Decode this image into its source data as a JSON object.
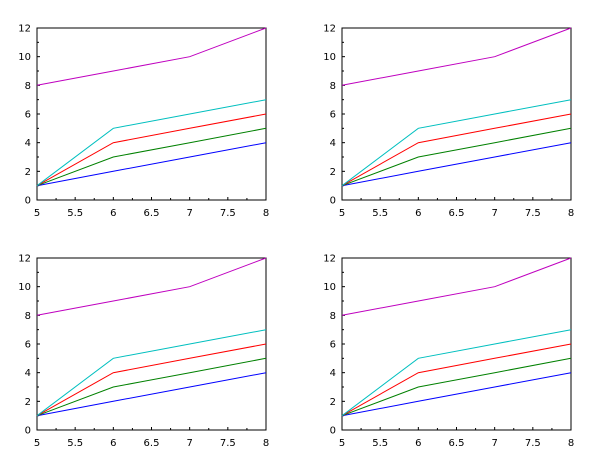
{
  "chart_data": [
    {
      "type": "line",
      "title": "",
      "xlabel": "",
      "ylabel": "",
      "xlim": [
        5,
        8
      ],
      "ylim": [
        0,
        12
      ],
      "x_ticks": [
        "5",
        "5.5",
        "6",
        "6.5",
        "7",
        "7.5",
        "8"
      ],
      "y_ticks": [
        "0",
        "2",
        "4",
        "6",
        "8",
        "10",
        "12"
      ],
      "grid": false,
      "x": [
        5,
        6,
        7,
        8
      ],
      "series": [
        {
          "name": "blue",
          "color": "#0000ff",
          "values": [
            1,
            2,
            3,
            4
          ]
        },
        {
          "name": "green",
          "color": "#008000",
          "values": [
            1,
            3,
            4,
            5
          ]
        },
        {
          "name": "red",
          "color": "#ff0000",
          "values": [
            1,
            4,
            5,
            6
          ]
        },
        {
          "name": "cyan",
          "color": "#00bfbf",
          "values": [
            1,
            5,
            6,
            7
          ]
        },
        {
          "name": "magenta",
          "color": "#bf00bf",
          "values": [
            8,
            9,
            10,
            12
          ]
        }
      ]
    },
    {
      "type": "line",
      "title": "",
      "xlabel": "",
      "ylabel": "",
      "xlim": [
        5,
        8
      ],
      "ylim": [
        0,
        12
      ],
      "x_ticks": [
        "5",
        "5.5",
        "6",
        "6.5",
        "7",
        "7.5",
        "8"
      ],
      "y_ticks": [
        "0",
        "2",
        "4",
        "6",
        "8",
        "10",
        "12"
      ],
      "grid": false,
      "x": [
        5,
        6,
        7,
        8
      ],
      "series": [
        {
          "name": "blue",
          "color": "#0000ff",
          "values": [
            1,
            2,
            3,
            4
          ]
        },
        {
          "name": "green",
          "color": "#008000",
          "values": [
            1,
            3,
            4,
            5
          ]
        },
        {
          "name": "red",
          "color": "#ff0000",
          "values": [
            1,
            4,
            5,
            6
          ]
        },
        {
          "name": "cyan",
          "color": "#00bfbf",
          "values": [
            1,
            5,
            6,
            7
          ]
        },
        {
          "name": "magenta",
          "color": "#bf00bf",
          "values": [
            8,
            9,
            10,
            12
          ]
        }
      ]
    },
    {
      "type": "line",
      "title": "",
      "xlabel": "",
      "ylabel": "",
      "xlim": [
        5,
        8
      ],
      "ylim": [
        0,
        12
      ],
      "x_ticks": [
        "5",
        "5.5",
        "6",
        "6.5",
        "7",
        "7.5",
        "8"
      ],
      "y_ticks": [
        "0",
        "2",
        "4",
        "6",
        "8",
        "10",
        "12"
      ],
      "grid": false,
      "x": [
        5,
        6,
        7,
        8
      ],
      "series": [
        {
          "name": "blue",
          "color": "#0000ff",
          "values": [
            1,
            2,
            3,
            4
          ]
        },
        {
          "name": "green",
          "color": "#008000",
          "values": [
            1,
            3,
            4,
            5
          ]
        },
        {
          "name": "red",
          "color": "#ff0000",
          "values": [
            1,
            4,
            5,
            6
          ]
        },
        {
          "name": "cyan",
          "color": "#00bfbf",
          "values": [
            1,
            5,
            6,
            7
          ]
        },
        {
          "name": "magenta",
          "color": "#bf00bf",
          "values": [
            8,
            9,
            10,
            12
          ]
        }
      ]
    },
    {
      "type": "line",
      "title": "",
      "xlabel": "",
      "ylabel": "",
      "xlim": [
        5,
        8
      ],
      "ylim": [
        0,
        12
      ],
      "x_ticks": [
        "5",
        "5.5",
        "6",
        "6.5",
        "7",
        "7.5",
        "8"
      ],
      "y_ticks": [
        "0",
        "2",
        "4",
        "6",
        "8",
        "10",
        "12"
      ],
      "grid": false,
      "x": [
        5,
        6,
        7,
        8
      ],
      "series": [
        {
          "name": "blue",
          "color": "#0000ff",
          "values": [
            1,
            2,
            3,
            4
          ]
        },
        {
          "name": "green",
          "color": "#008000",
          "values": [
            1,
            3,
            4,
            5
          ]
        },
        {
          "name": "red",
          "color": "#ff0000",
          "values": [
            1,
            4,
            5,
            6
          ]
        },
        {
          "name": "cyan",
          "color": "#00bfbf",
          "values": [
            1,
            5,
            6,
            7
          ]
        },
        {
          "name": "magenta",
          "color": "#bf00bf",
          "values": [
            8,
            9,
            10,
            12
          ]
        }
      ]
    }
  ]
}
